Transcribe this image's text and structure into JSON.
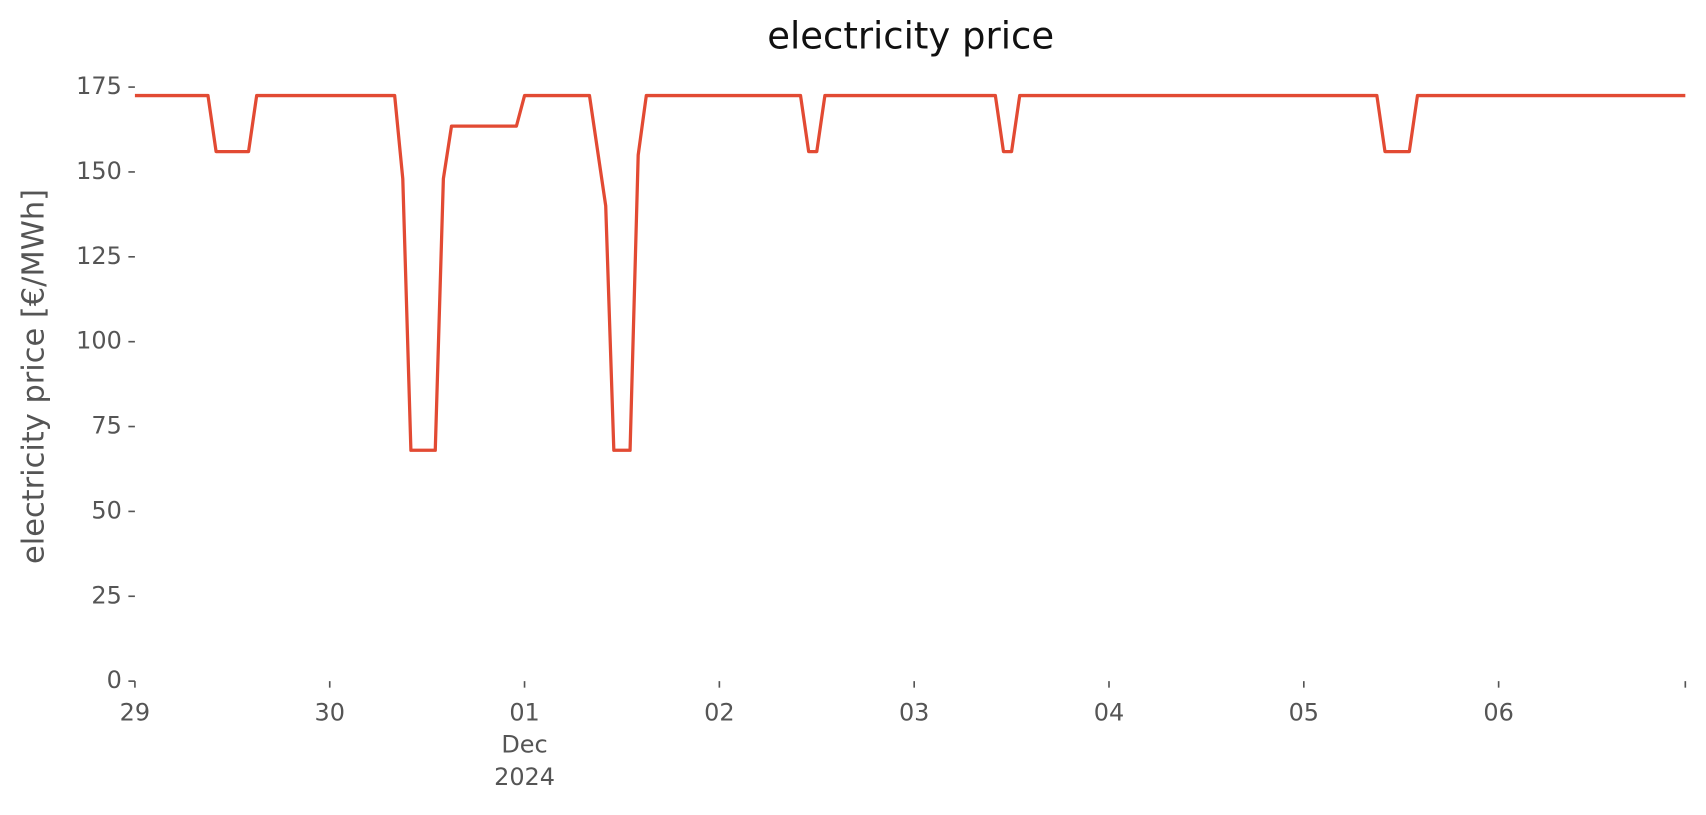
{
  "chart_data": {
    "type": "line",
    "title": "electricity price",
    "ylabel": "electricity price [€/MWh]",
    "x": [
      "2024-11-29T00:00",
      "2024-11-29T09:00",
      "2024-11-29T10:00",
      "2024-11-29T14:00",
      "2024-11-29T15:00",
      "2024-11-30T08:00",
      "2024-11-30T09:00",
      "2024-11-30T10:00",
      "2024-11-30T13:00",
      "2024-11-30T14:00",
      "2024-11-30T15:00",
      "2024-11-30T23:00",
      "2024-12-01T00:00",
      "2024-12-01T08:00",
      "2024-12-01T10:00",
      "2024-12-01T11:00",
      "2024-12-01T13:00",
      "2024-12-01T14:00",
      "2024-12-01T15:00",
      "2024-12-02T10:00",
      "2024-12-02T11:00",
      "2024-12-02T12:00",
      "2024-12-02T13:00",
      "2024-12-03T10:00",
      "2024-12-03T11:00",
      "2024-12-03T12:00",
      "2024-12-03T13:00",
      "2024-12-05T09:00",
      "2024-12-05T10:00",
      "2024-12-05T13:00",
      "2024-12-05T14:00",
      "2024-12-06T23:00"
    ],
    "series": [
      {
        "name": "electricity price",
        "color": "#e24a33",
        "values": [
          172.5,
          172.5,
          156,
          156,
          172.5,
          172.5,
          148,
          68,
          68,
          148,
          163.5,
          163.5,
          172.5,
          172.5,
          140,
          68,
          68,
          155,
          172.5,
          172.5,
          156,
          156,
          172.5,
          172.5,
          156,
          156,
          172.5,
          172.5,
          156,
          156,
          172.5,
          172.5
        ]
      }
    ],
    "xlim": [
      "2024-11-29T00:00",
      "2024-12-06T23:00"
    ],
    "xticks": [
      {
        "value": "2024-11-29T00:00",
        "label": "29"
      },
      {
        "value": "2024-11-30T00:00",
        "label": "30"
      },
      {
        "value": "2024-12-01T00:00",
        "label": "01\nDec\n2024"
      },
      {
        "value": "2024-12-02T00:00",
        "label": "02"
      },
      {
        "value": "2024-12-03T00:00",
        "label": "03"
      },
      {
        "value": "2024-12-04T00:00",
        "label": "04"
      },
      {
        "value": "2024-12-05T00:00",
        "label": "05"
      },
      {
        "value": "2024-12-06T00:00",
        "label": "06"
      }
    ],
    "ylim": [
      0,
      175
    ],
    "yticks": [
      0,
      25,
      50,
      75,
      100,
      125,
      150,
      175
    ],
    "grid": false
  }
}
